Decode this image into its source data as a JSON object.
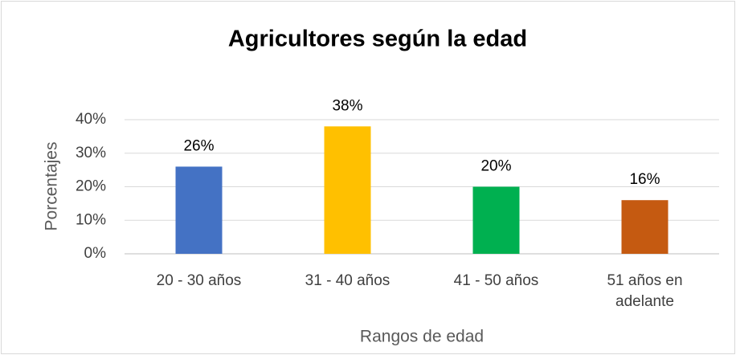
{
  "chart_data": {
    "type": "bar",
    "title": "Agricultores según la edad",
    "x_label": "Rangos de edad",
    "y_label": "Porcentajes",
    "categories": [
      "20 - 30 años",
      "31 - 40 años",
      "41 - 50 años",
      "51 años en adelante"
    ],
    "values": [
      26,
      38,
      20,
      16
    ],
    "value_labels": [
      "26%",
      "38%",
      "20%",
      "16%"
    ],
    "colors": [
      "#4472c4",
      "#ffc000",
      "#00b050",
      "#c55a11"
    ],
    "ylim": [
      0,
      40
    ],
    "yticks": [
      {
        "value": 0,
        "label": "0%"
      },
      {
        "value": 10,
        "label": "10%"
      },
      {
        "value": 20,
        "label": "20%"
      },
      {
        "value": 30,
        "label": "30%"
      },
      {
        "value": 40,
        "label": "40%"
      }
    ],
    "grid": true
  }
}
